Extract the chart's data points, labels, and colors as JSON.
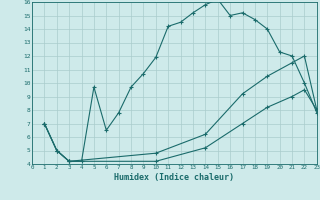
{
  "title": "",
  "xlabel": "Humidex (Indice chaleur)",
  "ylabel": "",
  "bg_color": "#ceeaea",
  "line_color": "#1a6b6b",
  "grid_color": "#aacccc",
  "xlim": [
    0,
    23
  ],
  "ylim": [
    4,
    16
  ],
  "xticks": [
    0,
    1,
    2,
    3,
    4,
    5,
    6,
    7,
    8,
    9,
    10,
    11,
    12,
    13,
    14,
    15,
    16,
    17,
    18,
    19,
    20,
    21,
    22,
    23
  ],
  "yticks": [
    4,
    5,
    6,
    7,
    8,
    9,
    10,
    11,
    12,
    13,
    14,
    15,
    16
  ],
  "line1_x": [
    1,
    2,
    3,
    4,
    5,
    6,
    7,
    8,
    9,
    10,
    11,
    12,
    13,
    14,
    15,
    16,
    17,
    18,
    19,
    20,
    21,
    22,
    23
  ],
  "line1_y": [
    7.0,
    5.0,
    4.2,
    4.2,
    9.7,
    6.5,
    7.8,
    9.7,
    10.7,
    11.9,
    14.2,
    14.5,
    15.2,
    15.8,
    16.2,
    15.0,
    15.2,
    14.7,
    14.0,
    12.3,
    12.0,
    10.0,
    7.8
  ],
  "line2_x": [
    1,
    2,
    3,
    10,
    14,
    17,
    19,
    21,
    22,
    23
  ],
  "line2_y": [
    7.0,
    5.0,
    4.2,
    4.8,
    6.2,
    9.2,
    10.5,
    11.5,
    12.0,
    8.0
  ],
  "line3_x": [
    1,
    2,
    3,
    10,
    14,
    17,
    19,
    21,
    22,
    23
  ],
  "line3_y": [
    7.0,
    5.0,
    4.2,
    4.2,
    5.2,
    7.0,
    8.2,
    9.0,
    9.5,
    8.0
  ],
  "marker": "+"
}
